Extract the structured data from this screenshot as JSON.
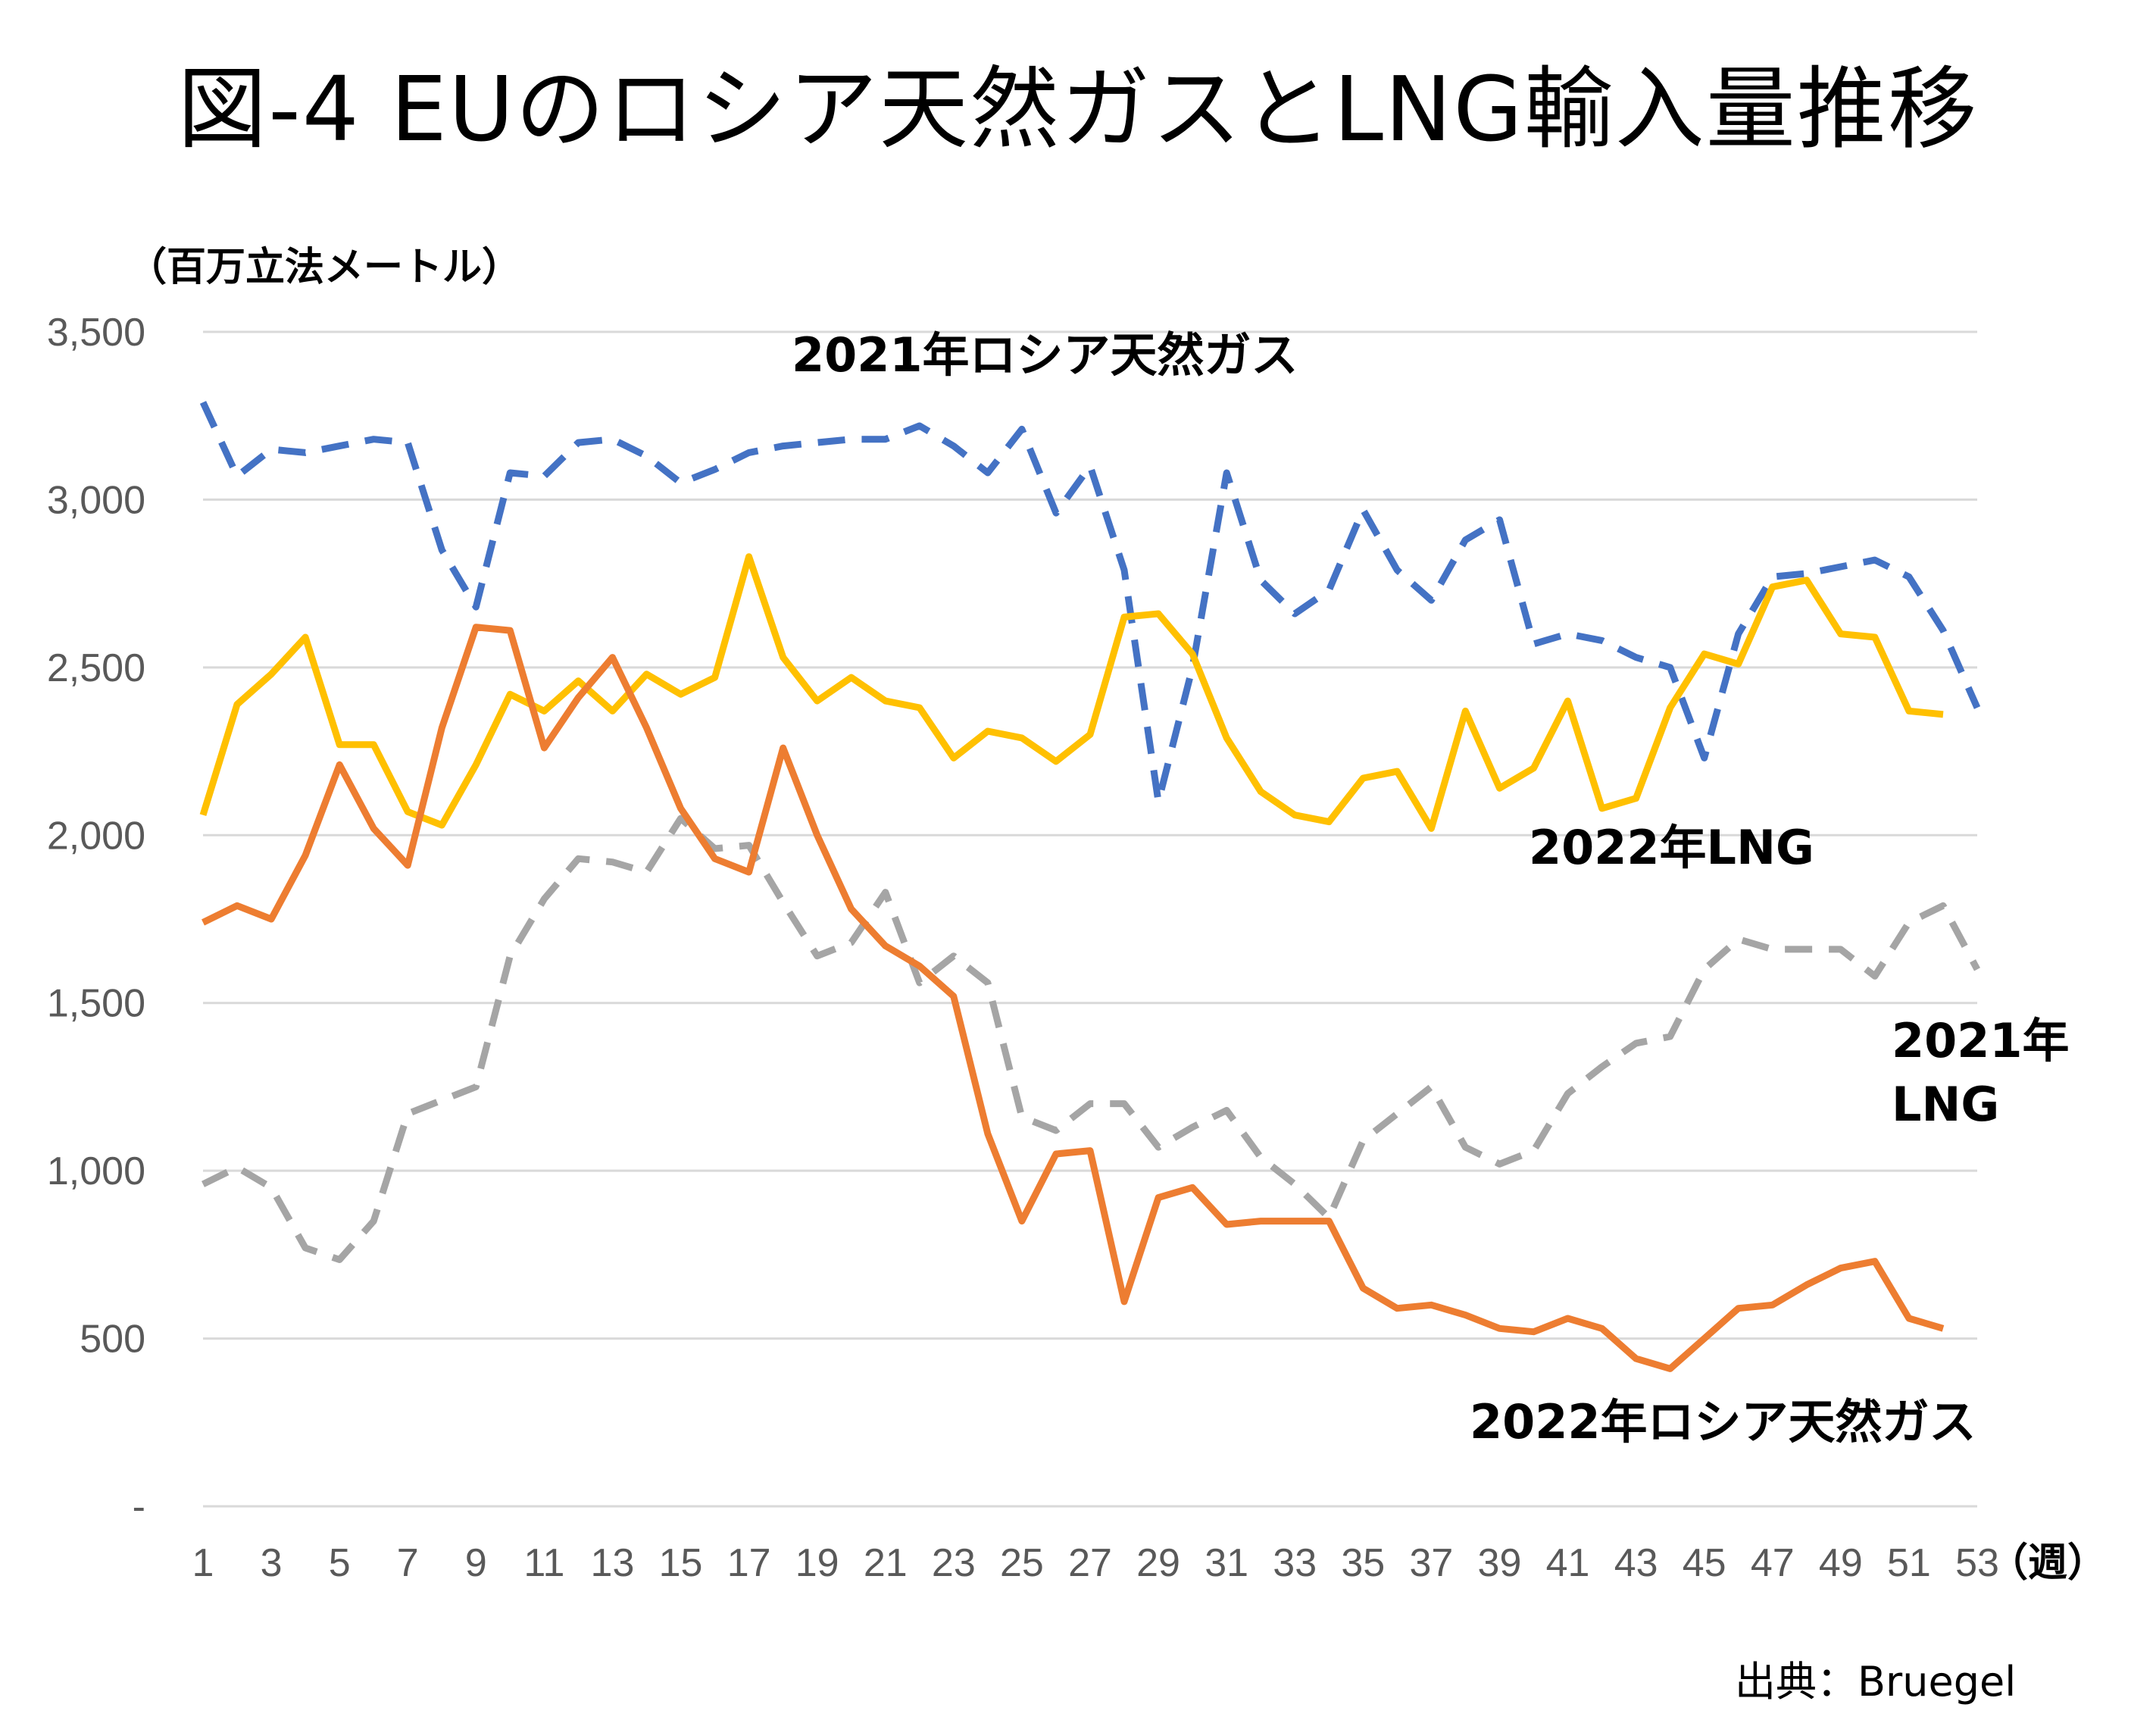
{
  "title": "図-4  EUのロシア天然ガスとLNG輸入量推移",
  "source": "出典：Bruegel",
  "chart_data": {
    "type": "line",
    "ylabel": "（百万立法メートル）",
    "xlabel": "（週）",
    "ylim": [
      0,
      3500
    ],
    "xlim": [
      1,
      53
    ],
    "y_ticks": [
      {
        "value": 0,
        "label": "-"
      },
      {
        "value": 500,
        "label": "500"
      },
      {
        "value": 1000,
        "label": "1,000"
      },
      {
        "value": 1500,
        "label": "1,500"
      },
      {
        "value": 2000,
        "label": "2,000"
      },
      {
        "value": 2500,
        "label": "2,500"
      },
      {
        "value": 3000,
        "label": "3,000"
      },
      {
        "value": 3500,
        "label": "3,500"
      }
    ],
    "x_ticks": [
      1,
      3,
      5,
      7,
      9,
      11,
      13,
      15,
      17,
      19,
      21,
      23,
      25,
      27,
      29,
      31,
      33,
      35,
      37,
      39,
      41,
      43,
      45,
      47,
      49,
      51,
      53
    ],
    "grid": true,
    "legend": "direct labels",
    "series": [
      {
        "name": "2021年ロシア天然ガス",
        "color": "#4472C4",
        "dash": true,
        "values": [
          3290,
          3070,
          3150,
          3140,
          3160,
          3180,
          3170,
          2850,
          2680,
          3080,
          3070,
          3170,
          3180,
          3130,
          3050,
          3090,
          3140,
          3160,
          3170,
          3180,
          3180,
          3220,
          3160,
          3080,
          3210,
          2960,
          3100,
          2790,
          2100,
          2500,
          3080,
          2760,
          2660,
          2730,
          2970,
          2790,
          2700,
          2880,
          2940,
          2570,
          2600,
          2580,
          2530,
          2500,
          2230,
          2600,
          2770,
          2780,
          2800,
          2820,
          2770,
          2610,
          2380
        ]
      },
      {
        "name": "2021年LNG",
        "color": "#A5A5A5",
        "dash": true,
        "values": [
          960,
          1010,
          950,
          770,
          735,
          850,
          1170,
          1210,
          1250,
          1640,
          1810,
          1930,
          1920,
          1890,
          2050,
          1960,
          1970,
          1800,
          1640,
          1680,
          1830,
          1560,
          1640,
          1560,
          1160,
          1120,
          1200,
          1200,
          1070,
          1130,
          1180,
          1040,
          960,
          860,
          1090,
          1170,
          1250,
          1070,
          1020,
          1060,
          1230,
          1310,
          1380,
          1400,
          1600,
          1690,
          1660,
          1660,
          1660,
          1580,
          1740,
          1790,
          1600
        ]
      },
      {
        "name": "2022年LNG",
        "color": "#FFC000",
        "dash": false,
        "values": [
          2060,
          2390,
          2480,
          2590,
          2270,
          2270,
          2070,
          2030,
          2210,
          2420,
          2370,
          2460,
          2370,
          2480,
          2420,
          2470,
          2830,
          2530,
          2400,
          2470,
          2400,
          2380,
          2230,
          2310,
          2290,
          2220,
          2300,
          2650,
          2660,
          2540,
          2290,
          2130,
          2060,
          2040,
          2170,
          2190,
          2020,
          2370,
          2140,
          2200,
          2400,
          2080,
          2110,
          2380,
          2540,
          2510,
          2740,
          2760,
          2600,
          2590,
          2370,
          2360
        ]
      },
      {
        "name": "2022年ロシア天然ガス",
        "color": "#ED7D31",
        "dash": false,
        "values": [
          1740,
          1790,
          1750,
          1940,
          2210,
          2020,
          1910,
          2320,
          2620,
          2610,
          2260,
          2410,
          2530,
          2320,
          2080,
          1930,
          1890,
          2260,
          2000,
          1780,
          1670,
          1610,
          1520,
          1110,
          850,
          1050,
          1060,
          610,
          920,
          950,
          840,
          850,
          850,
          850,
          650,
          590,
          600,
          570,
          530,
          520,
          560,
          530,
          440,
          410,
          500,
          590,
          600,
          660,
          710,
          730,
          560,
          530
        ]
      }
    ]
  }
}
